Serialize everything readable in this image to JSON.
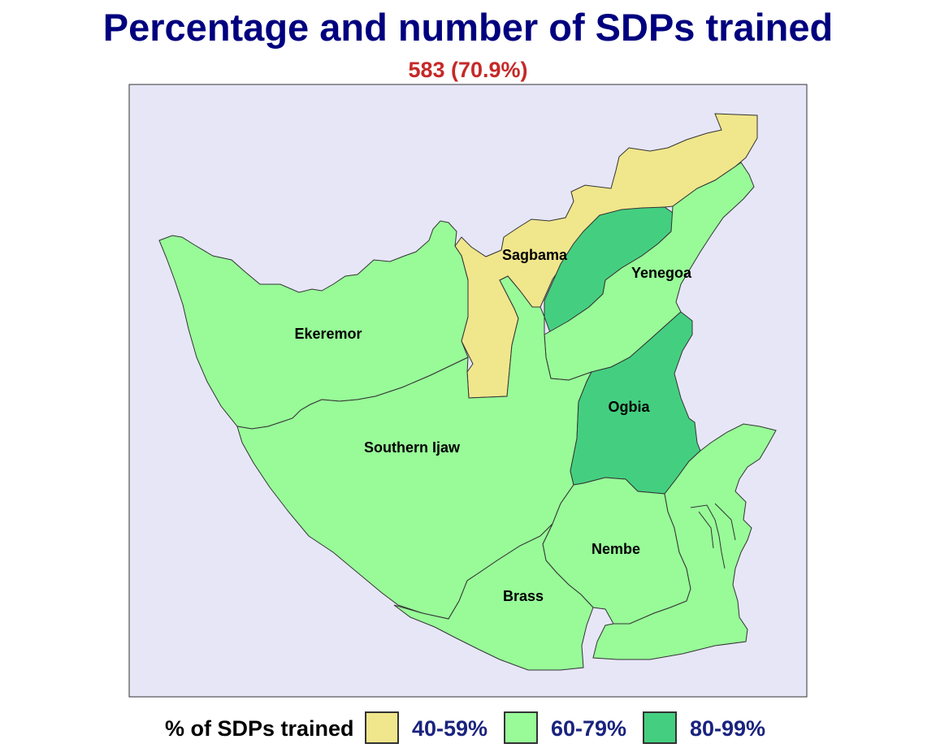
{
  "title": "Percentage and number of SDPs trained",
  "subtitle": "583 (70.9%)",
  "colors": {
    "background_panel": "#e6e6f7",
    "band_40_59": "#f0e68c",
    "band_60_79": "#98fb98",
    "band_80_99": "#44cf80",
    "title": "#00007f",
    "subtitle": "#c62828"
  },
  "regions": [
    {
      "name": "Sagbama",
      "band": "40-59%"
    },
    {
      "name": "Yenegoa",
      "band": "80-99% (west) / 60-79% (east)"
    },
    {
      "name": "Ekeremor",
      "band": "60-79%"
    },
    {
      "name": "Southern Ijaw",
      "band": "60-79%"
    },
    {
      "name": "Ogbia",
      "band": "80-99%"
    },
    {
      "name": "Nembe",
      "band": "60-79%"
    },
    {
      "name": "Brass",
      "band": "60-79%"
    }
  ],
  "legend": {
    "title": "% of SDPs trained",
    "items": [
      {
        "label": "40-59%",
        "color": "#f0e68c"
      },
      {
        "label": "60-79%",
        "color": "#98fb98"
      },
      {
        "label": "80-99%",
        "color": "#44cf80"
      }
    ]
  }
}
